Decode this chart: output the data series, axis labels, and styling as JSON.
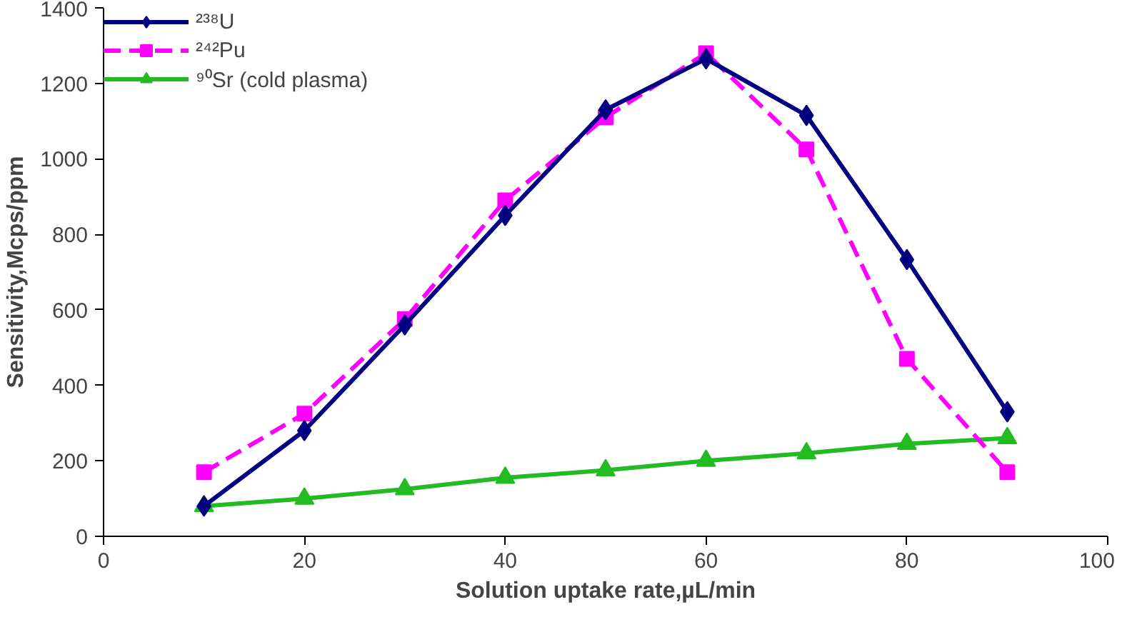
{
  "chart_data": {
    "type": "line",
    "xlabel": "Solution uptake rate,µL/min",
    "ylabel": "Sensitivity,Mcps/ppm",
    "x": [
      10,
      20,
      30,
      40,
      50,
      60,
      70,
      80,
      90
    ],
    "series": [
      {
        "name": "²³⁸U",
        "color": "#000080",
        "marker": "diamond",
        "line_style": "solid",
        "values": [
          80,
          280,
          560,
          850,
          1130,
          1265,
          1115,
          733,
          330
        ]
      },
      {
        "name": "²⁴²Pu",
        "color": "#ff00ff",
        "marker": "square",
        "line_style": "dashed",
        "values": [
          170,
          325,
          575,
          890,
          1110,
          1280,
          1025,
          470,
          170
        ]
      },
      {
        "name": "⁹⁰Sr (cold plasma)",
        "color": "#22bb22",
        "marker": "triangle",
        "line_style": "solid",
        "values": [
          80,
          100,
          125,
          155,
          175,
          200,
          220,
          245,
          260
        ]
      }
    ],
    "xlim": [
      0,
      100
    ],
    "ylim": [
      0,
      1400
    ],
    "xticks": [
      0,
      20,
      40,
      60,
      80,
      100
    ],
    "yticks": [
      0,
      200,
      400,
      600,
      800,
      1000,
      1200,
      1400
    ],
    "grid": false,
    "legend": "top left"
  }
}
